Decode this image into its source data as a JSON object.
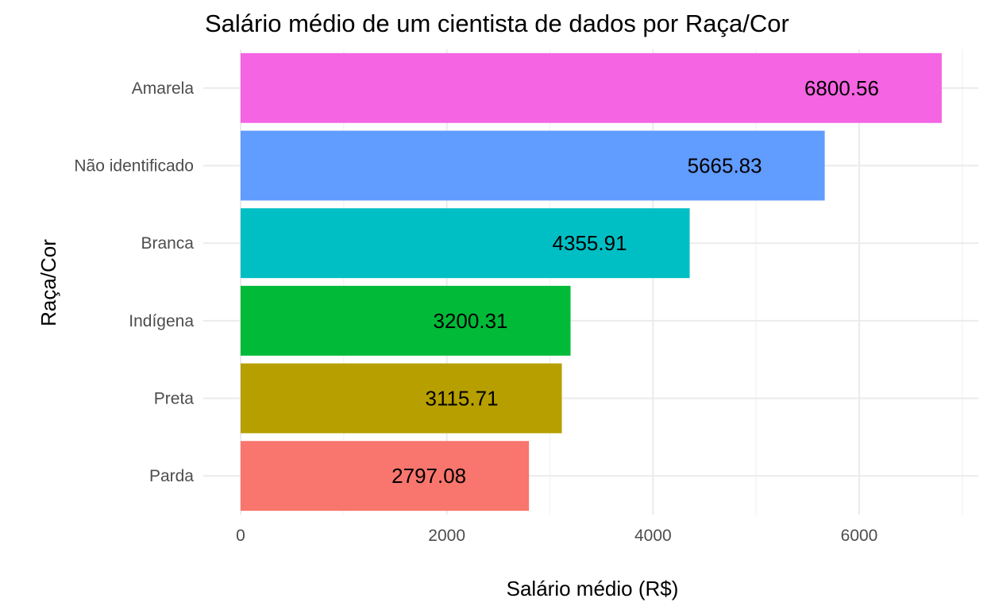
{
  "chart_data": {
    "type": "bar",
    "orientation": "horizontal",
    "title": "Salário médio de um cientista de dados por Raça/Cor",
    "xlabel": "Salário médio (R$)",
    "ylabel": "Raça/Cor",
    "xlim": [
      0,
      7000
    ],
    "x_ticks": [
      0,
      2000,
      4000,
      6000
    ],
    "x_tick_labels": [
      "0",
      "2000",
      "4000",
      "6000"
    ],
    "grid": true,
    "legend": "none",
    "categories": [
      "Amarela",
      "Não identificado",
      "Branca",
      "Indígena",
      "Preta",
      "Parda"
    ],
    "values": [
      6800.56,
      5665.83,
      4355.91,
      3200.31,
      3115.71,
      2797.08
    ],
    "value_labels": [
      "6800.56",
      "5665.83",
      "4355.91",
      "3200.31",
      "3115.71",
      "2797.08"
    ],
    "colors": [
      "#F564E3",
      "#619CFF",
      "#00BFC4",
      "#00BA38",
      "#B79F00",
      "#F8766D"
    ]
  }
}
